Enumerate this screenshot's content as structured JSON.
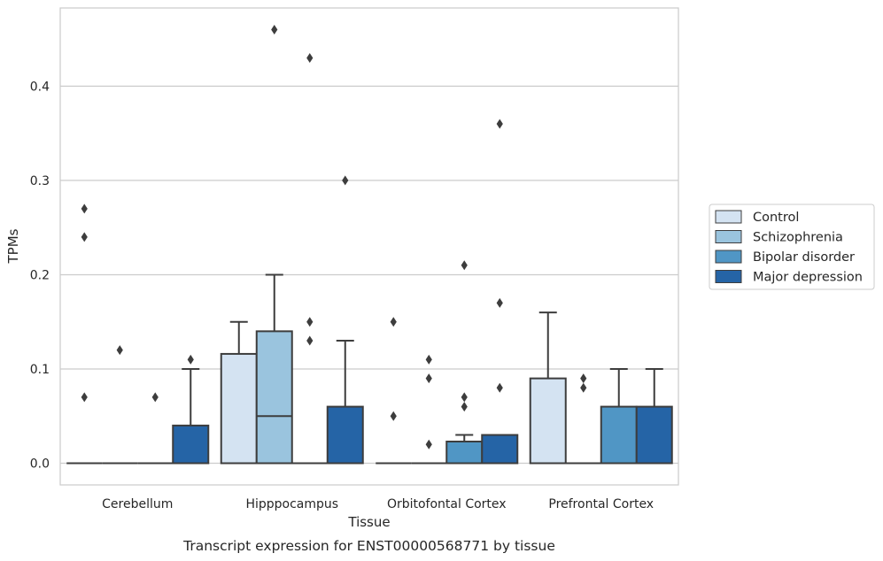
{
  "caption": "Transcript expression for ENST00000568771 by tissue",
  "chart_data": {
    "type": "box",
    "xlabel": "Tissue",
    "ylabel": "TPMs",
    "ylim": [
      -0.023,
      0.483
    ],
    "yticks": [
      0.0,
      0.1,
      0.2,
      0.3,
      0.4
    ],
    "ytick_labels": [
      "0.0",
      "0.1",
      "0.2",
      "0.3",
      "0.4"
    ],
    "grid": true,
    "legend_position": "right",
    "categories": [
      "Cerebellum",
      "Hipppocampus",
      "Orbitofontal Cortex",
      "Prefrontal Cortex"
    ],
    "series": [
      {
        "name": "Control",
        "color": "#d4e3f2",
        "boxes": [
          {
            "q1": 0,
            "median": 0,
            "q3": 0,
            "whisker_low": 0,
            "whisker_high": 0,
            "outliers": [
              0.07,
              0.24,
              0.27
            ]
          },
          {
            "q1": 0,
            "median": 0,
            "q3": 0.116,
            "whisker_low": 0,
            "whisker_high": 0.15,
            "outliers": []
          },
          {
            "q1": 0,
            "median": 0,
            "q3": 0,
            "whisker_low": 0,
            "whisker_high": 0,
            "outliers": [
              0.05,
              0.15
            ]
          },
          {
            "q1": 0,
            "median": 0,
            "q3": 0.09,
            "whisker_low": 0,
            "whisker_high": 0.16,
            "outliers": []
          }
        ]
      },
      {
        "name": "Schizophrenia",
        "color": "#9ac4de",
        "boxes": [
          {
            "q1": 0,
            "median": 0,
            "q3": 0,
            "whisker_low": 0,
            "whisker_high": 0,
            "outliers": [
              0.12
            ]
          },
          {
            "q1": 0,
            "median": 0.05,
            "q3": 0.14,
            "whisker_low": 0,
            "whisker_high": 0.2,
            "outliers": [
              0.46
            ]
          },
          {
            "q1": 0,
            "median": 0,
            "q3": 0,
            "whisker_low": 0,
            "whisker_high": 0,
            "outliers": [
              0.02,
              0.09,
              0.11
            ]
          },
          {
            "q1": 0,
            "median": 0,
            "q3": 0,
            "whisker_low": 0,
            "whisker_high": 0,
            "outliers": [
              0.08,
              0.09
            ]
          }
        ]
      },
      {
        "name": "Bipolar disorder",
        "color": "#5096c5",
        "boxes": [
          {
            "q1": 0,
            "median": 0,
            "q3": 0,
            "whisker_low": 0,
            "whisker_high": 0,
            "outliers": [
              0.07
            ]
          },
          {
            "q1": 0,
            "median": 0,
            "q3": 0,
            "whisker_low": 0,
            "whisker_high": 0,
            "outliers": [
              0.13,
              0.15,
              0.43
            ]
          },
          {
            "q1": 0,
            "median": 0,
            "q3": 0.023,
            "whisker_low": 0,
            "whisker_high": 0.03,
            "outliers": [
              0.06,
              0.07,
              0.21
            ]
          },
          {
            "q1": 0,
            "median": 0,
            "q3": 0.06,
            "whisker_low": 0,
            "whisker_high": 0.1,
            "outliers": []
          }
        ]
      },
      {
        "name": "Major depression",
        "color": "#2564a6",
        "boxes": [
          {
            "q1": 0,
            "median": 0,
            "q3": 0.04,
            "whisker_low": 0,
            "whisker_high": 0.1,
            "outliers": [
              0.11
            ]
          },
          {
            "q1": 0,
            "median": 0,
            "q3": 0.06,
            "whisker_low": 0,
            "whisker_high": 0.13,
            "outliers": [
              0.3
            ]
          },
          {
            "q1": 0,
            "median": 0,
            "q3": 0.03,
            "whisker_low": 0,
            "whisker_high": 0.03,
            "outliers": [
              0.08,
              0.17,
              0.36
            ]
          },
          {
            "q1": 0,
            "median": 0,
            "q3": 0.06,
            "whisker_low": 0,
            "whisker_high": 0.1,
            "outliers": []
          }
        ]
      }
    ]
  }
}
